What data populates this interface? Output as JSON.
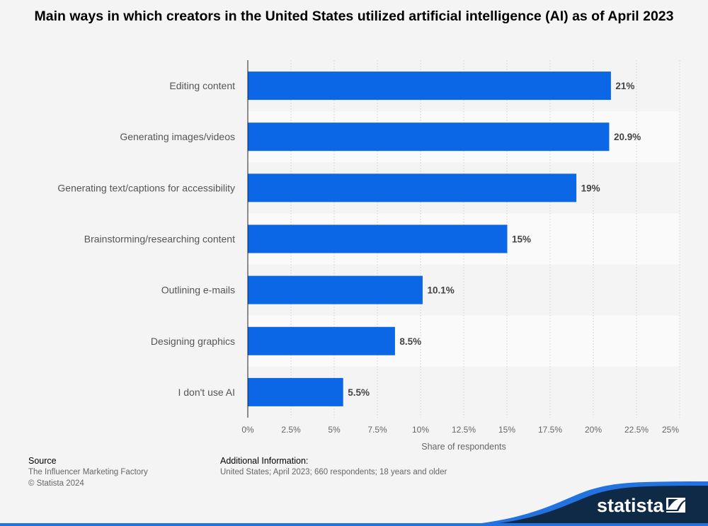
{
  "chart_data": {
    "type": "bar",
    "orientation": "horizontal",
    "title": "Main ways in which creators in the United States utilized artificial intelligence (AI) as of April 2023",
    "categories": [
      "Editing content",
      "Generating images/videos",
      "Generating text/captions for accessibility",
      "Brainstorming/researching content",
      "Outlining e-mails",
      "Designing graphics",
      "I don't use AI"
    ],
    "values": [
      21,
      20.9,
      19,
      15,
      10.1,
      8.5,
      5.5
    ],
    "data_labels": [
      "21%",
      "20.9%",
      "19%",
      "15%",
      "10.1%",
      "8.5%",
      "5.5%"
    ],
    "xlabel": "Share of respondents",
    "ylabel": "",
    "xlim": [
      0,
      25
    ],
    "x_ticks": [
      "0%",
      "2.5%",
      "5%",
      "7.5%",
      "10%",
      "12.5%",
      "15%",
      "17.5%",
      "20%",
      "22.5%",
      "25%"
    ],
    "grid": "vertical dotted",
    "bar_color": "#0b67e6"
  },
  "footer": {
    "source_heading": "Source",
    "source_name": "The Influencer Marketing Factory",
    "copyright": "© Statista 2024",
    "additional_heading": "Additional Information:",
    "additional_text": "United States; April 2023; 660 respondents; 18 years and older"
  },
  "brand": {
    "logo_text": "statista",
    "dark": "#0e2a47",
    "accent": "#2272e0"
  }
}
